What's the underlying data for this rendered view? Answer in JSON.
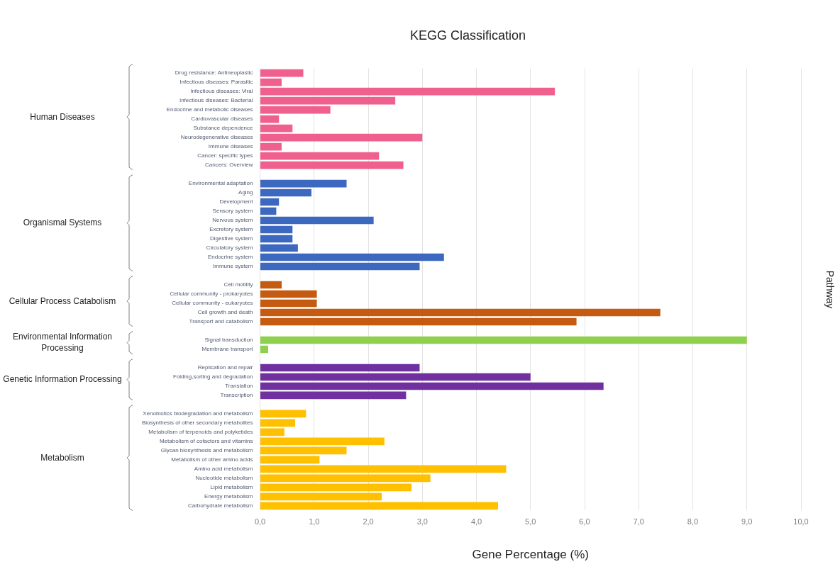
{
  "chart_data": {
    "type": "bar",
    "orientation": "horizontal",
    "title": "KEGG Classification",
    "xlabel": "Gene Percentage (%)",
    "ylabel": "Pathway",
    "categories": [
      "Drug resistance: Antineoplastic",
      "Infectious diseases: Parasitic",
      "Infectious diseases: Viral",
      "Infectious diseases: Bacterial",
      "Endocrine and metabolic diseases",
      "Cardiovascular diseases",
      "Substance dependence",
      "Neurodegenerative diseases",
      "Immune diseases",
      "Cancer: specific types",
      "Cancers: Overview",
      null,
      "Environmental adaptation",
      "Aging",
      "Development",
      "Sensory system",
      "Nervous system",
      "Excretory system",
      "Digestive system",
      "Circulatory system",
      "Endocrine system",
      "Immune system",
      null,
      "Cell motility",
      "Cellular community - prokaryotes",
      "Cellular community - eukaryotes",
      "Cell growth and death",
      "Transport and catabolism",
      null,
      "Signal transduction",
      "Membrane transport",
      null,
      "Replication and repair",
      "Folding,sorting and degradation",
      "Translation",
      "Transcription",
      null,
      "Xenobiotics biodegradation and metabolism",
      "Biosynthesis of other secondary metabolites",
      "Metabolism of terpenoids and polyketides",
      "Metabolism of cofactors and vitamins",
      "Glycan biosynthesis and metabolism",
      "Metabolism of other amino acids",
      "Amino acid metabolism",
      "Nucleotide metabolism",
      "Lipid metabolism",
      "Energy metabolism",
      "Carbohydrate metabolism"
    ],
    "series": [
      {
        "color": "#f0608f",
        "values": [
          0.8,
          0.4,
          5.45,
          2.5,
          1.3,
          0.35,
          0.6,
          3.0,
          0.4,
          2.2,
          2.65,
          null,
          null,
          null,
          null,
          null,
          null,
          null,
          null,
          null,
          null,
          null,
          null,
          null,
          null,
          null,
          null,
          null,
          null,
          null,
          null,
          null,
          null,
          null,
          null,
          null,
          null,
          null,
          null,
          null,
          null,
          null,
          null,
          null,
          null,
          null,
          null,
          null
        ]
      },
      {
        "color": "#3c68c0",
        "values": [
          null,
          null,
          null,
          null,
          null,
          null,
          null,
          null,
          null,
          null,
          null,
          null,
          1.6,
          0.95,
          0.35,
          0.3,
          2.1,
          0.6,
          0.6,
          0.7,
          3.4,
          2.95,
          null,
          null,
          null,
          null,
          null,
          null,
          null,
          null,
          null,
          null,
          null,
          null,
          null,
          null,
          null,
          null,
          null,
          null,
          null,
          null,
          null,
          null,
          null,
          null,
          null,
          null
        ]
      },
      {
        "color": "#c55a11",
        "values": [
          null,
          null,
          null,
          null,
          null,
          null,
          null,
          null,
          null,
          null,
          null,
          null,
          null,
          null,
          null,
          null,
          null,
          null,
          null,
          null,
          null,
          null,
          null,
          0.4,
          1.05,
          1.05,
          7.4,
          5.85,
          null,
          null,
          null,
          null,
          null,
          null,
          null,
          null,
          null,
          null,
          null,
          null,
          null,
          null,
          null,
          null,
          null,
          null,
          null,
          null
        ]
      },
      {
        "color": "#8fd14f",
        "values": [
          null,
          null,
          null,
          null,
          null,
          null,
          null,
          null,
          null,
          null,
          null,
          null,
          null,
          null,
          null,
          null,
          null,
          null,
          null,
          null,
          null,
          null,
          null,
          null,
          null,
          null,
          null,
          null,
          null,
          9.0,
          0.15,
          null,
          null,
          null,
          null,
          null,
          null,
          null,
          null,
          null,
          null,
          null,
          null,
          null,
          null,
          null,
          null,
          null
        ]
      },
      {
        "color": "#7030a0",
        "values": [
          null,
          null,
          null,
          null,
          null,
          null,
          null,
          null,
          null,
          null,
          null,
          null,
          null,
          null,
          null,
          null,
          null,
          null,
          null,
          null,
          null,
          null,
          null,
          null,
          null,
          null,
          null,
          null,
          null,
          null,
          null,
          null,
          2.95,
          5.0,
          6.35,
          2.7,
          null,
          null,
          null,
          null,
          null,
          null,
          null,
          null,
          null,
          null,
          null,
          null
        ]
      },
      {
        "color": "#ffc000",
        "values": [
          null,
          null,
          null,
          null,
          null,
          null,
          null,
          null,
          null,
          null,
          null,
          null,
          null,
          null,
          null,
          null,
          null,
          null,
          null,
          null,
          null,
          null,
          null,
          null,
          null,
          null,
          null,
          null,
          null,
          null,
          null,
          null,
          null,
          null,
          null,
          null,
          null,
          0.85,
          0.65,
          0.45,
          2.3,
          1.6,
          1.1,
          4.55,
          3.15,
          2.8,
          2.25,
          4.4
        ]
      }
    ],
    "xlim": [
      0,
      10
    ],
    "xticks": [
      {
        "value": 0,
        "label": "0,0"
      },
      {
        "value": 1,
        "label": "1,0"
      },
      {
        "value": 2,
        "label": "2,0"
      },
      {
        "value": 3,
        "label": "3,0"
      },
      {
        "value": 4,
        "label": "4,0"
      },
      {
        "value": 5,
        "label": "5,0"
      },
      {
        "value": 6,
        "label": "6,0"
      },
      {
        "value": 7,
        "label": "7,0"
      },
      {
        "value": 8,
        "label": "8,0"
      },
      {
        "value": 9,
        "label": "9,0"
      },
      {
        "value": 10,
        "label": "10,0"
      }
    ],
    "annotations": [
      "Human Diseases",
      "Organismal Systems",
      "Cellular Process Catabolism",
      "Environmental Information Processing",
      "Genetic Information Processing",
      "Metabolism"
    ],
    "grid": "x",
    "legend": false
  }
}
